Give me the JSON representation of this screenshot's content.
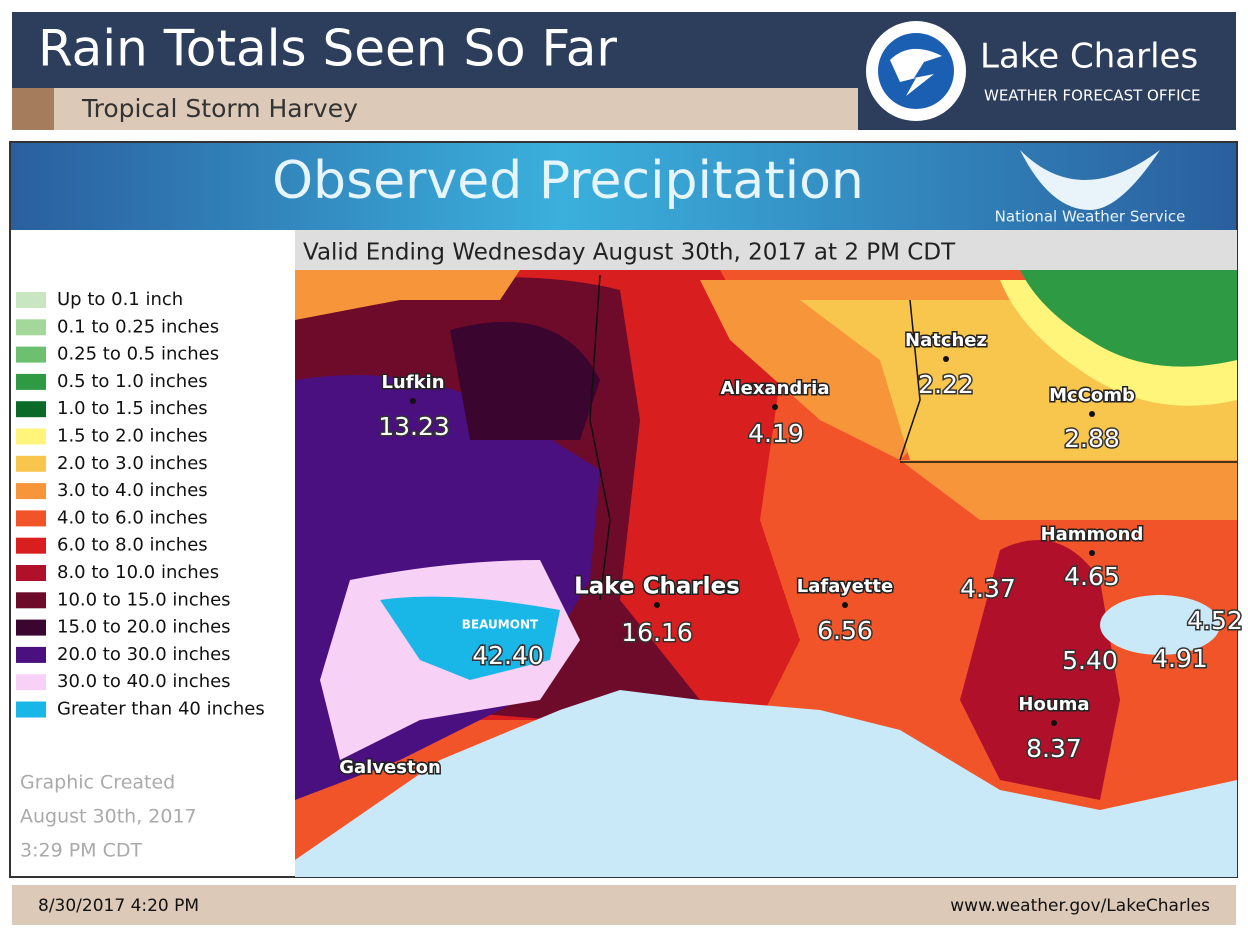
{
  "header": {
    "title": "Rain Totals Seen So Far",
    "subtitle": "Tropical Storm Harvey",
    "office": "Lake Charles",
    "office_sub": "WEATHER FORECAST OFFICE"
  },
  "map": {
    "title": "Observed Precipitation",
    "agency": "National Weather Service",
    "valid": "Valid Ending Wednesday August 30th, 2017 at 2 PM CDT",
    "legend": [
      {
        "label": "Up to 0.1 inch",
        "color": "#c8e6c2"
      },
      {
        "label": "0.1 to 0.25 inches",
        "color": "#a4d89a"
      },
      {
        "label": "0.25 to 0.5 inches",
        "color": "#6cc070"
      },
      {
        "label": "0.5 to 1.0 inches",
        "color": "#2f9a44"
      },
      {
        "label": "1.0 to 1.5 inches",
        "color": "#0b6a27"
      },
      {
        "label": "1.5 to 2.0 inches",
        "color": "#fff57a"
      },
      {
        "label": "2.0 to 3.0 inches",
        "color": "#f9c64d"
      },
      {
        "label": "3.0 to 4.0 inches",
        "color": "#f7953a"
      },
      {
        "label": "4.0 to 6.0 inches",
        "color": "#f2542a"
      },
      {
        "label": "6.0 to 8.0 inches",
        "color": "#d81e1e"
      },
      {
        "label": "8.0 to 10.0 inches",
        "color": "#b0102a"
      },
      {
        "label": "10.0 to 15.0 inches",
        "color": "#6e0a2a"
      },
      {
        "label": "15.0 to 20.0 inches",
        "color": "#3a0630"
      },
      {
        "label": "20.0 to 30.0 inches",
        "color": "#4b1080"
      },
      {
        "label": "30.0 to 40.0 inches",
        "color": "#f8d2f6"
      },
      {
        "label": "Greater than 40 inches",
        "color": "#19b6e8"
      }
    ],
    "cities": [
      {
        "name": "Lufkin",
        "value": "13.23"
      },
      {
        "name": "Alexandria",
        "value": "4.19"
      },
      {
        "name": "Natchez",
        "value": "2.22"
      },
      {
        "name": "McComb",
        "value": "2.88"
      },
      {
        "name": "Hammond",
        "value": "4.65"
      },
      {
        "name": "Lake Charles",
        "value": "16.16"
      },
      {
        "name": "Lafayette",
        "value": "6.56"
      },
      {
        "name": "Houma",
        "value": "8.37"
      },
      {
        "name": "BEAUMONT",
        "value": "42.40"
      },
      {
        "name": "Galveston"
      }
    ],
    "other_values": [
      "4.37",
      "5.40",
      "4.91",
      "4.52"
    ],
    "created": [
      "Graphic Created",
      "August 30th, 2017",
      "3:29 PM CDT"
    ]
  },
  "footer": {
    "date": "8/30/2017 4:20 PM",
    "url": "www.weather.gov/LakeCharles"
  }
}
